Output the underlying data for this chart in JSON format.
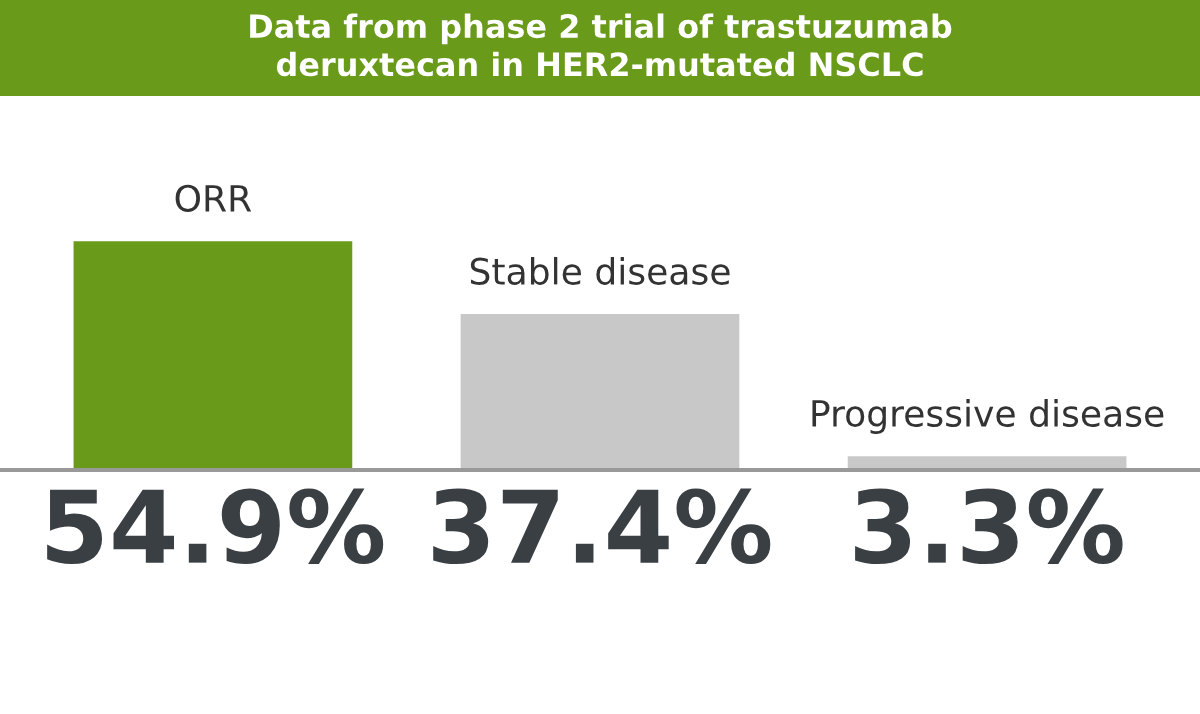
{
  "chart_data": {
    "type": "bar",
    "title": "Data from phase 2 trial of trastuzumab\nderuxtecan in HER2-mutated NSCLC",
    "categories": [
      "ORR",
      "Stable disease",
      "Progressive disease"
    ],
    "values": [
      54.9,
      37.4,
      3.3
    ],
    "colors": [
      "#6a9a1a",
      "#c8c8c8",
      "#c8c8c8"
    ],
    "value_labels": [
      "54.9%",
      "37.4%",
      "3.3%"
    ]
  }
}
